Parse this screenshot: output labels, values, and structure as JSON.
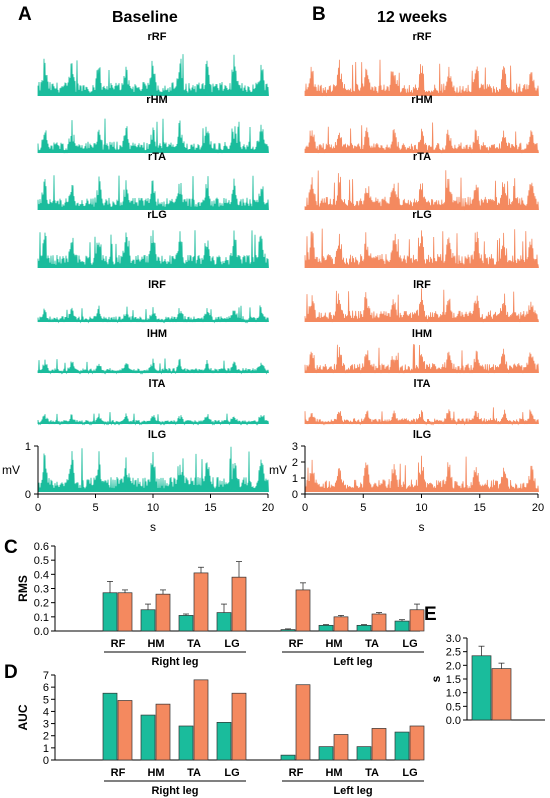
{
  "panels": {
    "A": {
      "letter": "A",
      "title": "Baseline"
    },
    "B": {
      "letter": "B",
      "title": "12 weeks"
    },
    "C": {
      "letter": "C"
    },
    "D": {
      "letter": "D"
    },
    "E": {
      "letter": "E"
    }
  },
  "colors": {
    "baseline": "#1ABC9C",
    "week12": "#F4895F",
    "axis": "#000000"
  },
  "emg": {
    "channels": [
      "rRF",
      "rHM",
      "rTA",
      "rLG",
      "lRF",
      "lHM",
      "lTA",
      "lLG"
    ],
    "amplitude": {
      "baseline": [
        0.85,
        0.7,
        0.75,
        0.8,
        0.35,
        0.3,
        0.25,
        0.95
      ],
      "week12": [
        0.75,
        0.65,
        0.8,
        0.85,
        0.7,
        0.6,
        0.35,
        0.8
      ]
    },
    "ylabel": "mV",
    "xlabel": "s",
    "xticks": [
      0,
      5,
      10,
      15,
      20
    ],
    "yticks_A": [
      0,
      1
    ],
    "yticks_B": [
      0,
      1,
      2,
      3
    ]
  },
  "chart_data": [
    {
      "type": "bar",
      "panel": "C",
      "ylabel": "RMS",
      "ylim": [
        0,
        0.6
      ],
      "yticks": [
        "0.0",
        "0.1",
        "0.2",
        "0.3",
        "0.4",
        "0.5",
        "0.6"
      ],
      "categories": [
        "RF",
        "HM",
        "TA",
        "LG",
        "RF",
        "HM",
        "TA",
        "LG"
      ],
      "groups": [
        {
          "label": "Right leg",
          "from": 0,
          "to": 3
        },
        {
          "label": "Left leg",
          "from": 4,
          "to": 7
        }
      ],
      "series": [
        {
          "values": [
            0.27,
            0.15,
            0.11,
            0.13,
            0.01,
            0.04,
            0.04,
            0.07
          ],
          "err": [
            0.08,
            0.04,
            0.01,
            0.06,
            0.005,
            0.005,
            0.005,
            0.01
          ]
        },
        {
          "values": [
            0.27,
            0.26,
            0.41,
            0.38,
            0.29,
            0.1,
            0.12,
            0.15
          ],
          "err": [
            0.02,
            0.03,
            0.04,
            0.11,
            0.05,
            0.01,
            0.01,
            0.04
          ]
        }
      ]
    },
    {
      "type": "bar",
      "panel": "D",
      "ylabel": "AUC",
      "ylim": [
        0,
        7
      ],
      "yticks": [
        "0",
        "1",
        "2",
        "3",
        "4",
        "5",
        "6",
        "7"
      ],
      "categories": [
        "RF",
        "HM",
        "TA",
        "LG",
        "RF",
        "HM",
        "TA",
        "LG"
      ],
      "groups": [
        {
          "label": "Right leg",
          "from": 0,
          "to": 3
        },
        {
          "label": "Left leg",
          "from": 4,
          "to": 7
        }
      ],
      "series": [
        {
          "values": [
            5.5,
            3.7,
            2.8,
            3.1,
            0.4,
            1.1,
            1.1,
            2.3
          ]
        },
        {
          "values": [
            4.9,
            4.6,
            6.6,
            5.5,
            6.2,
            2.1,
            2.6,
            2.8
          ]
        }
      ]
    },
    {
      "type": "bar",
      "panel": "E",
      "ylabel": "s",
      "ylim": [
        0,
        3
      ],
      "yticks": [
        "0.0",
        "0.5",
        "1.0",
        "1.5",
        "2.0",
        "2.5",
        "3.0"
      ],
      "series": [
        {
          "values": [
            2.35
          ],
          "err": [
            0.35
          ]
        },
        {
          "values": [
            1.88
          ],
          "err": [
            0.2
          ]
        }
      ]
    }
  ]
}
